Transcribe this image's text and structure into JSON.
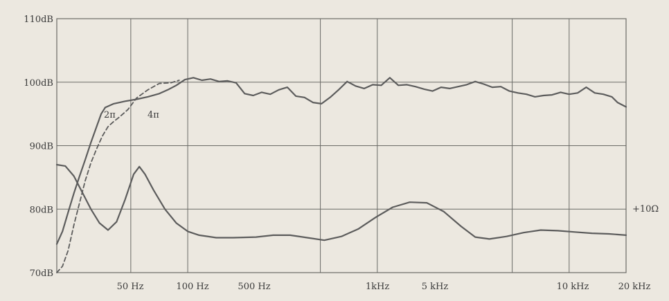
{
  "chart_data": {
    "type": "line",
    "title": "",
    "xlabel": "",
    "ylabel": "",
    "ylim": [
      70,
      110
    ],
    "y_ticks": [
      "70dB",
      "80dB",
      "90dB",
      "100dB",
      "110dB"
    ],
    "x_tick_labels": [
      "50 Hz",
      "100 Hz",
      "500 Hz",
      "1kHz",
      "5 kHz",
      "10 kHz",
      "20 kHz"
    ],
    "grid": true,
    "annotations": [
      "2π",
      "4π",
      "+10Ω"
    ],
    "series": [
      {
        "name": "2π",
        "style": "solid",
        "color": "#5c5c5c",
        "points": [
          [
            0.0,
            74.5
          ],
          [
            0.01,
            76.5
          ],
          [
            0.02,
            79.5
          ],
          [
            0.03,
            82.5
          ],
          [
            0.04,
            85.2
          ],
          [
            0.05,
            87.8
          ],
          [
            0.06,
            90.5
          ],
          [
            0.07,
            93.0
          ],
          [
            0.078,
            95.0
          ],
          [
            0.085,
            96.0
          ]
        ]
      },
      {
        "name": "4π",
        "style": "dashed",
        "color": "#5c5c5c",
        "points": [
          [
            0.0,
            70.0
          ],
          [
            0.01,
            71.0
          ],
          [
            0.02,
            73.5
          ],
          [
            0.03,
            77.5
          ],
          [
            0.04,
            81.0
          ],
          [
            0.05,
            84.5
          ],
          [
            0.06,
            87.3
          ],
          [
            0.07,
            89.5
          ],
          [
            0.08,
            91.5
          ],
          [
            0.09,
            93.0
          ],
          [
            0.1,
            93.8
          ],
          [
            0.11,
            94.5
          ],
          [
            0.125,
            95.7
          ],
          [
            0.14,
            97.5
          ],
          [
            0.16,
            98.8
          ],
          [
            0.18,
            99.8
          ],
          [
            0.2,
            99.9
          ],
          [
            0.215,
            100.3
          ]
        ]
      },
      {
        "name": "",
        "style": "solid",
        "color": "#5c5c5c",
        "points": [
          [
            0.085,
            96.0
          ],
          [
            0.1,
            96.6
          ],
          [
            0.12,
            97.0
          ],
          [
            0.14,
            97.3
          ],
          [
            0.16,
            97.7
          ],
          [
            0.18,
            98.2
          ],
          [
            0.195,
            98.8
          ],
          [
            0.21,
            99.5
          ],
          [
            0.225,
            100.4
          ],
          [
            0.24,
            100.7
          ],
          [
            0.255,
            100.3
          ],
          [
            0.27,
            100.5
          ],
          [
            0.285,
            100.1
          ],
          [
            0.3,
            100.2
          ],
          [
            0.315,
            99.9
          ],
          [
            0.33,
            98.2
          ],
          [
            0.345,
            97.9
          ],
          [
            0.36,
            98.4
          ],
          [
            0.375,
            98.1
          ],
          [
            0.39,
            98.8
          ],
          [
            0.405,
            99.2
          ],
          [
            0.42,
            97.8
          ],
          [
            0.435,
            97.6
          ],
          [
            0.45,
            96.8
          ],
          [
            0.465,
            96.6
          ],
          [
            0.48,
            97.6
          ],
          [
            0.495,
            98.8
          ],
          [
            0.51,
            100.1
          ],
          [
            0.525,
            99.4
          ],
          [
            0.54,
            99.0
          ],
          [
            0.555,
            99.6
          ],
          [
            0.57,
            99.5
          ],
          [
            0.585,
            100.7
          ],
          [
            0.6,
            99.5
          ],
          [
            0.615,
            99.6
          ],
          [
            0.63,
            99.3
          ],
          [
            0.645,
            98.9
          ],
          [
            0.66,
            98.6
          ],
          [
            0.675,
            99.2
          ],
          [
            0.69,
            99.0
          ],
          [
            0.705,
            99.3
          ],
          [
            0.72,
            99.6
          ],
          [
            0.735,
            100.1
          ],
          [
            0.75,
            99.7
          ],
          [
            0.765,
            99.2
          ],
          [
            0.78,
            99.3
          ],
          [
            0.795,
            98.6
          ],
          [
            0.81,
            98.3
          ],
          [
            0.825,
            98.1
          ],
          [
            0.84,
            97.7
          ],
          [
            0.855,
            97.9
          ],
          [
            0.87,
            98.0
          ],
          [
            0.885,
            98.4
          ],
          [
            0.9,
            98.1
          ],
          [
            0.915,
            98.3
          ],
          [
            0.93,
            99.2
          ],
          [
            0.945,
            98.3
          ],
          [
            0.96,
            98.1
          ],
          [
            0.975,
            97.7
          ],
          [
            0.985,
            96.8
          ],
          [
            1.0,
            96.1
          ]
        ]
      },
      {
        "name": "+10Ω",
        "style": "solid",
        "color": "#5c5c5c",
        "points": [
          [
            0.0,
            87.0
          ],
          [
            0.015,
            86.8
          ],
          [
            0.03,
            85.2
          ],
          [
            0.045,
            82.6
          ],
          [
            0.06,
            80.0
          ],
          [
            0.075,
            77.8
          ],
          [
            0.09,
            76.7
          ],
          [
            0.105,
            78.0
          ],
          [
            0.12,
            81.5
          ],
          [
            0.135,
            85.5
          ],
          [
            0.145,
            86.7
          ],
          [
            0.155,
            85.5
          ],
          [
            0.17,
            83.0
          ],
          [
            0.19,
            80.0
          ],
          [
            0.21,
            77.8
          ],
          [
            0.23,
            76.5
          ],
          [
            0.25,
            75.9
          ],
          [
            0.28,
            75.5
          ],
          [
            0.31,
            75.5
          ],
          [
            0.35,
            75.6
          ],
          [
            0.38,
            75.9
          ],
          [
            0.41,
            75.9
          ],
          [
            0.44,
            75.5
          ],
          [
            0.47,
            75.1
          ],
          [
            0.5,
            75.7
          ],
          [
            0.53,
            76.9
          ],
          [
            0.56,
            78.7
          ],
          [
            0.59,
            80.3
          ],
          [
            0.62,
            81.1
          ],
          [
            0.65,
            81.0
          ],
          [
            0.68,
            79.6
          ],
          [
            0.71,
            77.3
          ],
          [
            0.735,
            75.6
          ],
          [
            0.76,
            75.3
          ],
          [
            0.79,
            75.7
          ],
          [
            0.82,
            76.3
          ],
          [
            0.85,
            76.7
          ],
          [
            0.88,
            76.6
          ],
          [
            0.91,
            76.4
          ],
          [
            0.94,
            76.2
          ],
          [
            0.97,
            76.1
          ],
          [
            1.0,
            75.9
          ]
        ]
      }
    ]
  }
}
